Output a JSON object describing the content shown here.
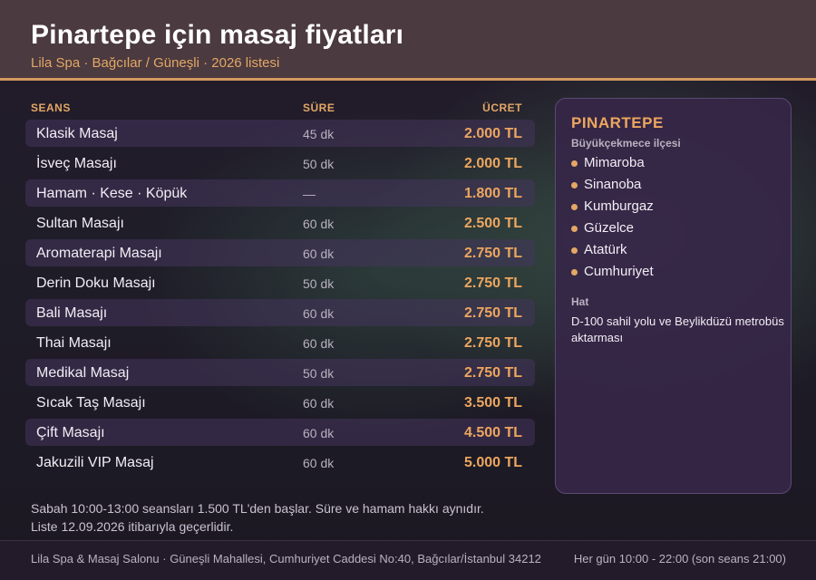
{
  "header": {
    "title": "Pinartepe için masaj fiyatları",
    "subtitle": "Lila Spa · Bağcılar / Güneşli · 2026 listesi"
  },
  "table": {
    "columns": [
      "SEANS",
      "SÜRE",
      "ÜCRET"
    ],
    "rows": [
      {
        "name": "Klasik Masaj",
        "duration": "45 dk",
        "price": "2.000 TL"
      },
      {
        "name": "İsveç Masajı",
        "duration": "50 dk",
        "price": "2.000 TL"
      },
      {
        "name": "Hamam · Kese · Köpük",
        "duration": "—",
        "price": "1.800 TL"
      },
      {
        "name": "Sultan Masajı",
        "duration": "60 dk",
        "price": "2.500 TL"
      },
      {
        "name": "Aromaterapi Masajı",
        "duration": "60 dk",
        "price": "2.750 TL"
      },
      {
        "name": "Derin Doku Masajı",
        "duration": "50 dk",
        "price": "2.750 TL"
      },
      {
        "name": "Bali Masajı",
        "duration": "60 dk",
        "price": "2.750 TL"
      },
      {
        "name": "Thai Masajı",
        "duration": "60 dk",
        "price": "2.750 TL"
      },
      {
        "name": "Medikal Masaj",
        "duration": "50 dk",
        "price": "2.750 TL"
      },
      {
        "name": "Sıcak Taş Masajı",
        "duration": "60 dk",
        "price": "3.500 TL"
      },
      {
        "name": "Çift Masajı",
        "duration": "60 dk",
        "price": "4.500 TL"
      },
      {
        "name": "Jakuzili VIP Masaj",
        "duration": "60 dk",
        "price": "5.000 TL"
      }
    ]
  },
  "sidebar": {
    "title": "PINARTEPE",
    "subtitle": "Büyükçekmece ilçesi",
    "neighborhoods": [
      "Mimaroba",
      "Sinanoba",
      "Kumburgaz",
      "Güzelce",
      "Atatürk",
      "Cumhuriyet"
    ],
    "hat_label": "Hat",
    "hat_text": "D-100 sahil yolu ve Beylikdüzü metrobüs aktarması"
  },
  "notes": {
    "line1": "Sabah 10:00-13:00 seansları 1.500 TL'den başlar. Süre ve hamam hakkı aynıdır.",
    "line2": "Liste 12.09.2026 itibarıyla geçerlidir."
  },
  "footer": {
    "address": "Lila Spa & Masaj Salonu · Güneşli Mahallesi, Cumhuriyet Caddesi No:40, Bağcılar/İstanbul 34212",
    "hours": "Her gün 10:00 - 22:00 (son seans 21:00)"
  },
  "colors": {
    "accent": "#e3a766",
    "price": "#eda65f",
    "header_bg": "#4b3a3f",
    "sidebar_bg": "#362648"
  }
}
